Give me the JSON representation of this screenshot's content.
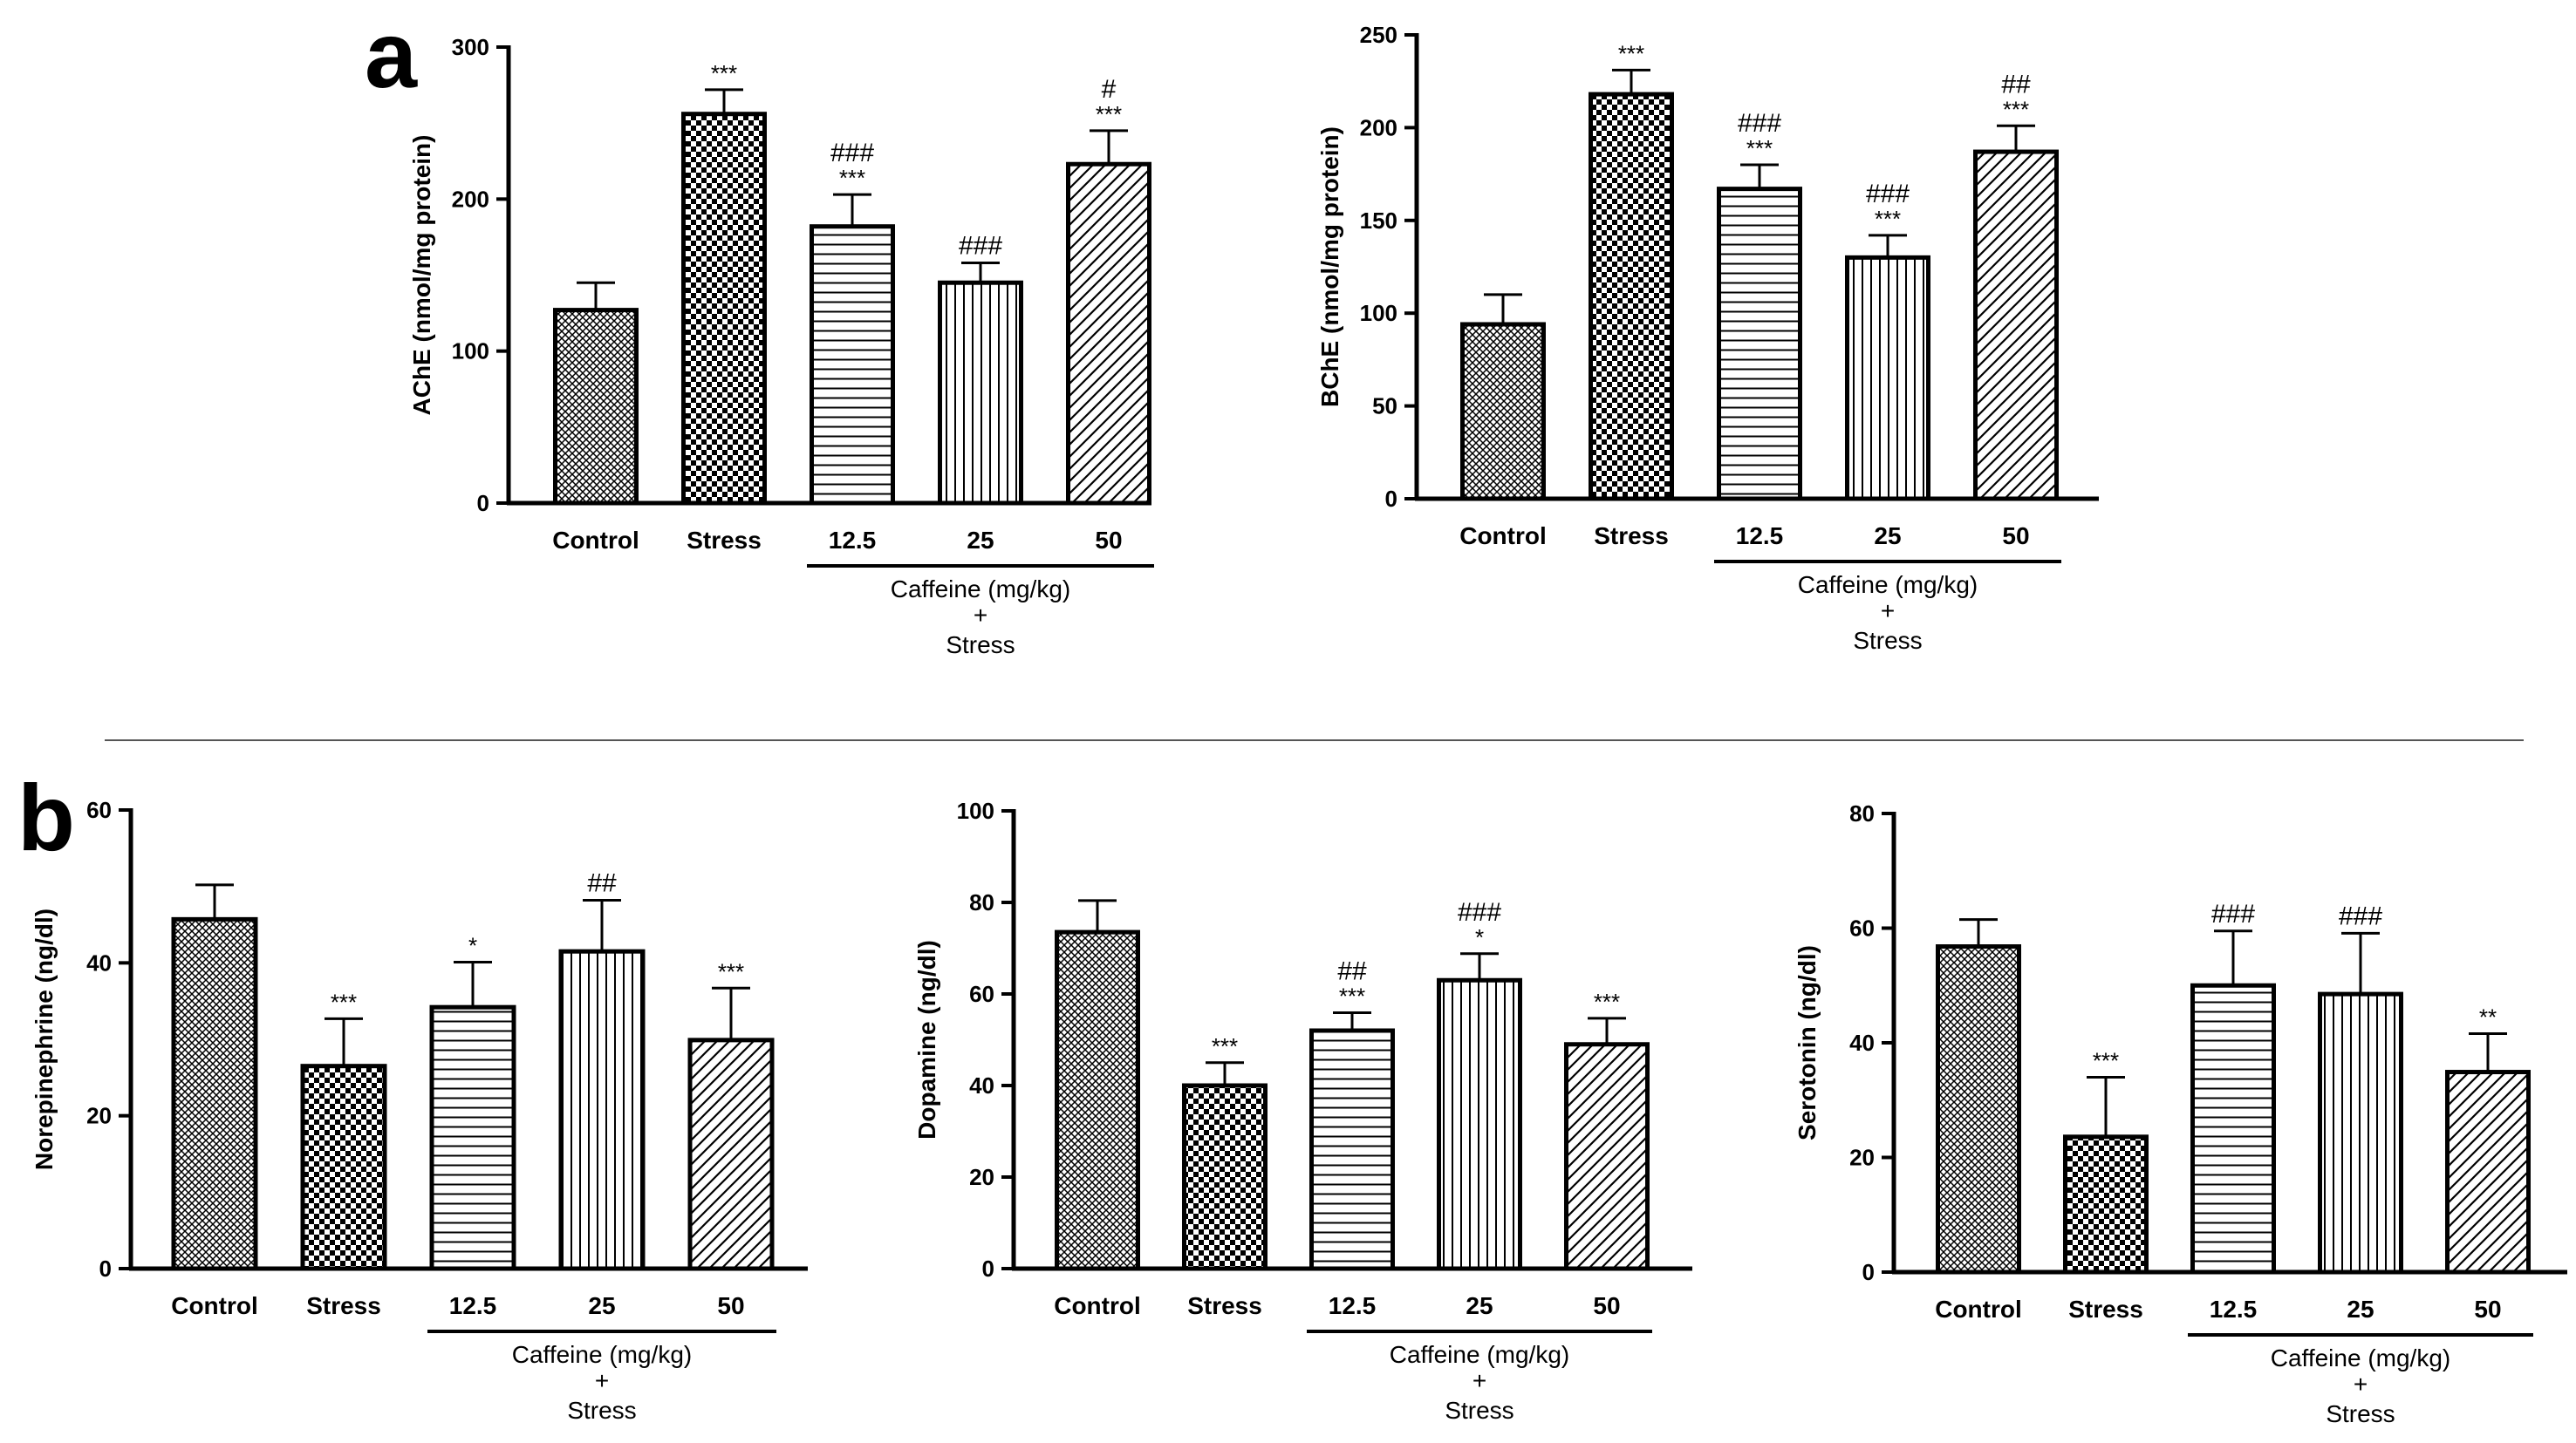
{
  "panels": {
    "a": {
      "letter": "a"
    },
    "b": {
      "letter": "b"
    }
  },
  "group_caption": {
    "line1": "Caffeine (mg/kg)",
    "line2": "+",
    "line3": "Stress"
  },
  "chart_data": [
    {
      "type": "bar",
      "panel": "a",
      "categories": [
        "Control",
        "Stress",
        "12.5",
        "25",
        "50"
      ],
      "values": [
        127,
        256,
        182,
        145,
        223
      ],
      "errors": [
        18,
        16,
        21,
        13,
        22
      ],
      "annotations": [
        [],
        [
          "***"
        ],
        [
          "***",
          "###"
        ],
        [
          "###"
        ],
        [
          "***",
          "#"
        ]
      ],
      "ylabel": "AChE (nmol/mg protein)",
      "ylim": [
        0,
        300
      ],
      "yticks": [
        0,
        100,
        200,
        300
      ]
    },
    {
      "type": "bar",
      "panel": "a",
      "categories": [
        "Control",
        "Stress",
        "12.5",
        "25",
        "50"
      ],
      "values": [
        94,
        218,
        167,
        130,
        187
      ],
      "errors": [
        16,
        13,
        13,
        12,
        14
      ],
      "annotations": [
        [],
        [
          "***"
        ],
        [
          "***",
          "###"
        ],
        [
          "***",
          "###"
        ],
        [
          "***",
          "##"
        ]
      ],
      "ylabel": "BChE (nmol/mg protein)",
      "ylim": [
        0,
        250
      ],
      "yticks": [
        0,
        50,
        100,
        150,
        200,
        250
      ]
    },
    {
      "type": "bar",
      "panel": "b",
      "categories": [
        "Control",
        "Stress",
        "12.5",
        "25",
        "50"
      ],
      "values": [
        45.7,
        26.5,
        34.2,
        41.5,
        29.9
      ],
      "errors": [
        4.5,
        6.2,
        5.9,
        6.7,
        6.8
      ],
      "annotations": [
        [],
        [
          "***"
        ],
        [
          "*"
        ],
        [
          "##"
        ],
        [
          "***"
        ]
      ],
      "ylabel": "Norepinephrine (ng/dl)",
      "ylim": [
        0,
        60
      ],
      "yticks": [
        0,
        20,
        40,
        60
      ]
    },
    {
      "type": "bar",
      "panel": "b",
      "categories": [
        "Control",
        "Stress",
        "12.5",
        "25",
        "50"
      ],
      "values": [
        73.5,
        40,
        52,
        63,
        49
      ],
      "errors": [
        6.9,
        5,
        3.9,
        5.8,
        5.7
      ],
      "annotations": [
        [],
        [
          "***"
        ],
        [
          "***",
          "##"
        ],
        [
          "*",
          "###"
        ],
        [
          "***"
        ]
      ],
      "ylabel": "Dopamine (ng/dl)",
      "ylim": [
        0,
        100
      ],
      "yticks": [
        0,
        20,
        40,
        60,
        80,
        100
      ]
    },
    {
      "type": "bar",
      "panel": "b",
      "categories": [
        "Control",
        "Stress",
        "12.5",
        "25",
        "50"
      ],
      "values": [
        56.8,
        23.6,
        50,
        48.5,
        34.9
      ],
      "errors": [
        4.7,
        10.4,
        9.5,
        10.6,
        6.7
      ],
      "annotations": [
        [],
        [
          "***"
        ],
        [
          "###"
        ],
        [
          "###"
        ],
        [
          "**"
        ]
      ],
      "ylabel": "Serotonin (ng/dl)",
      "ylim": [
        0,
        80
      ],
      "yticks": [
        0,
        20,
        40,
        60,
        80
      ]
    }
  ]
}
